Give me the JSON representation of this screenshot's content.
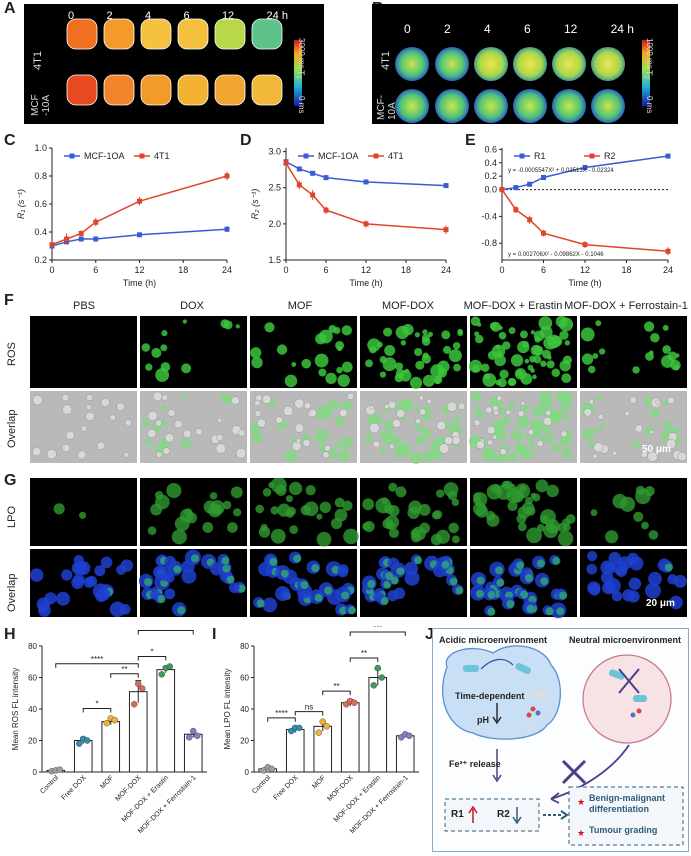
{
  "panels": {
    "a": "A",
    "b": "B",
    "c": "C",
    "d": "D",
    "e": "E",
    "f": "F",
    "g": "G",
    "h": "H",
    "i": "I",
    "j": "J"
  },
  "panel_a": {
    "timepoints": [
      "0",
      "2",
      "4",
      "6",
      "12",
      "24 h"
    ],
    "rows": [
      "4T1",
      "MCF\n-10A"
    ],
    "colorbar_max": "3000",
    "colorbar_min": "0",
    "colorbar_unit": "ms",
    "colorbar_label": "T₁"
  },
  "panel_b": {
    "timepoints": [
      "0",
      "2",
      "4",
      "6",
      "12",
      "24 h"
    ],
    "rows": [
      "4T1",
      "MCF-\n10A"
    ],
    "colorbar_max": "1000",
    "colorbar_min": "0",
    "colorbar_unit": "ms",
    "colorbar_label": "T₂"
  },
  "panel_f": {
    "columns": [
      "PBS",
      "DOX",
      "MOF",
      "MOF-DOX",
      "MOF-DOX + Erastin",
      "MOF-DOX + Ferrostain-1"
    ],
    "row_labels": [
      "ROS",
      "Overlap"
    ],
    "scale_bar": "50 μm"
  },
  "panel_g": {
    "row_labels": [
      "LPO",
      "Overlap"
    ],
    "scale_bar": "20 μm"
  },
  "panel_j": {
    "acidic": "Acidic microenvironment",
    "neutral": "Neutral microenvironment",
    "time_dependent": "Time-dependent",
    "ph": "pH",
    "fe_release": "Fe³⁺ release",
    "r1": "R1",
    "r2": "R2",
    "outcome1": "Benign-malignant differentiation",
    "outcome2": "Tumour grading",
    "colors": {
      "cell": "#c9dff5",
      "cell_border": "#5a8fd0",
      "neutral": "#f7e3e6",
      "box_border": "#2f5d78"
    }
  },
  "chart_data": [
    {
      "id": "C",
      "type": "line",
      "xlabel": "Time (h)",
      "ylabel": "R₁ (s⁻¹)",
      "x": [
        0,
        2,
        4,
        6,
        12,
        24
      ],
      "xticks": [
        0,
        6,
        12,
        18,
        24
      ],
      "yticks": [
        0.2,
        0.4,
        0.6,
        0.8,
        1.0
      ],
      "xlim": [
        0,
        24
      ],
      "ylim": [
        0.2,
        1.0
      ],
      "series": [
        {
          "name": "MCF-1OA",
          "color": "#3b5bd4",
          "values": [
            0.3,
            0.33,
            0.35,
            0.35,
            0.38,
            0.42
          ],
          "err": [
            0.01,
            0.01,
            0.01,
            0.01,
            0.01,
            0.02
          ]
        },
        {
          "name": "4T1",
          "color": "#e0452b",
          "values": [
            0.31,
            0.35,
            0.39,
            0.47,
            0.62,
            0.8
          ],
          "err": [
            0.02,
            0.04,
            0.02,
            0.03,
            0.03,
            0.03
          ]
        }
      ]
    },
    {
      "id": "D",
      "type": "line",
      "xlabel": "Time (h)",
      "ylabel": "R₂ (s⁻¹)",
      "x": [
        0,
        2,
        4,
        6,
        12,
        24
      ],
      "xticks": [
        0,
        6,
        12,
        18,
        24
      ],
      "yticks": [
        1.5,
        2.0,
        2.5,
        3.0
      ],
      "xlim": [
        0,
        24
      ],
      "ylim": [
        1.5,
        3.05
      ],
      "series": [
        {
          "name": "MCF-1OA",
          "color": "#3b5bd4",
          "values": [
            2.86,
            2.76,
            2.7,
            2.64,
            2.58,
            2.53
          ],
          "err": [
            0.03,
            0.03,
            0.03,
            0.03,
            0.02,
            0.03
          ]
        },
        {
          "name": "4T1",
          "color": "#e0452b",
          "values": [
            2.84,
            2.54,
            2.4,
            2.19,
            2.0,
            1.92
          ],
          "err": [
            0.05,
            0.06,
            0.07,
            0.05,
            0.05,
            0.06
          ]
        }
      ]
    },
    {
      "id": "E",
      "type": "line",
      "xlabel": "Time (h)",
      "ylabel": "",
      "x": [
        0,
        2,
        4,
        6,
        12,
        24
      ],
      "xticks": [
        0,
        6,
        12,
        18,
        24
      ],
      "yticks": [
        0.6,
        0.4,
        0.2,
        0.0,
        -0.4,
        -0.8
      ],
      "ytick_labels": [
        "0.6",
        "0.4",
        "0.2",
        "0.0",
        "-0.4",
        "-0.8"
      ],
      "xlim": [
        0,
        24
      ],
      "ylim": [
        -1.05,
        0.62
      ],
      "series": [
        {
          "name": "R1",
          "color": "#3b5bd4",
          "values": [
            0.0,
            0.03,
            0.08,
            0.18,
            0.33,
            0.5
          ],
          "err": [
            0.0,
            0.01,
            0.01,
            0.01,
            0.02,
            0.02
          ]
        },
        {
          "name": "R2",
          "color": "#e0452b",
          "values": [
            0.0,
            -0.3,
            -0.45,
            -0.65,
            -0.82,
            -0.92
          ],
          "err": [
            0.0,
            0.05,
            0.06,
            0.05,
            0.05,
            0.06
          ]
        }
      ],
      "annotations": [
        "y = -0.0005547X² + 0.03513X - 0.02324",
        "y = 0.002706X² - 0.09862X - 0.1046"
      ]
    },
    {
      "id": "H",
      "type": "bar",
      "ylabel": "Mean ROS FL intensity",
      "categories": [
        "Control",
        "Free DOX",
        "MOF",
        "MOF-DOX",
        "MOF-DOX + Erastin",
        "MOF-DOX + Ferrostain-1"
      ],
      "values": [
        1,
        20,
        32,
        51,
        65,
        24
      ],
      "points": [
        [
          0.5,
          1,
          1.5
        ],
        [
          18,
          21,
          20
        ],
        [
          31,
          34,
          33
        ],
        [
          43,
          56,
          53
        ],
        [
          62,
          66,
          67
        ],
        [
          22,
          26,
          23
        ]
      ],
      "err": [
        0.5,
        2,
        2,
        7,
        2,
        2
      ],
      "point_colors": [
        "#9e9e9e",
        "#2f8fb0",
        "#f2b233",
        "#e06a5a",
        "#3e9b5c",
        "#8a7cc4"
      ],
      "yticks": [
        0,
        20,
        40,
        60,
        80
      ],
      "ylim": [
        0,
        80
      ],
      "significance": [
        {
          "from": 0,
          "to": 3,
          "label": "****"
        },
        {
          "from": 1,
          "to": 2,
          "label": "*"
        },
        {
          "from": 2,
          "to": 3,
          "label": "**"
        },
        {
          "from": 3,
          "to": 4,
          "label": "*"
        },
        {
          "from": 3,
          "to": 5,
          "label": "****"
        }
      ]
    },
    {
      "id": "I",
      "type": "bar",
      "ylabel": "Mean LPO FL intensity",
      "categories": [
        "Control",
        "Free DOX",
        "MOF",
        "MOF-DOX",
        "MOF-DOX + Erastin",
        "MOF-DOX + Ferrostain-1"
      ],
      "values": [
        2,
        27,
        29,
        44,
        60,
        23
      ],
      "points": [
        [
          1,
          3,
          2
        ],
        [
          26,
          28,
          28
        ],
        [
          25,
          32,
          29
        ],
        [
          43,
          45,
          44
        ],
        [
          55,
          66,
          60
        ],
        [
          22,
          24,
          23
        ]
      ],
      "err": [
        1,
        2,
        3,
        2,
        5,
        1
      ],
      "point_colors": [
        "#9e9e9e",
        "#2f8fb0",
        "#f2b233",
        "#e06a5a",
        "#3e9b5c",
        "#8a7cc4"
      ],
      "yticks": [
        0,
        20,
        40,
        60,
        80
      ],
      "ylim": [
        0,
        80
      ],
      "significance": [
        {
          "from": 0,
          "to": 1,
          "label": "****"
        },
        {
          "from": 1,
          "to": 2,
          "label": "ns"
        },
        {
          "from": 2,
          "to": 3,
          "label": "**"
        },
        {
          "from": 3,
          "to": 4,
          "label": "**"
        },
        {
          "from": 3,
          "to": 5,
          "label": "***"
        }
      ]
    }
  ]
}
